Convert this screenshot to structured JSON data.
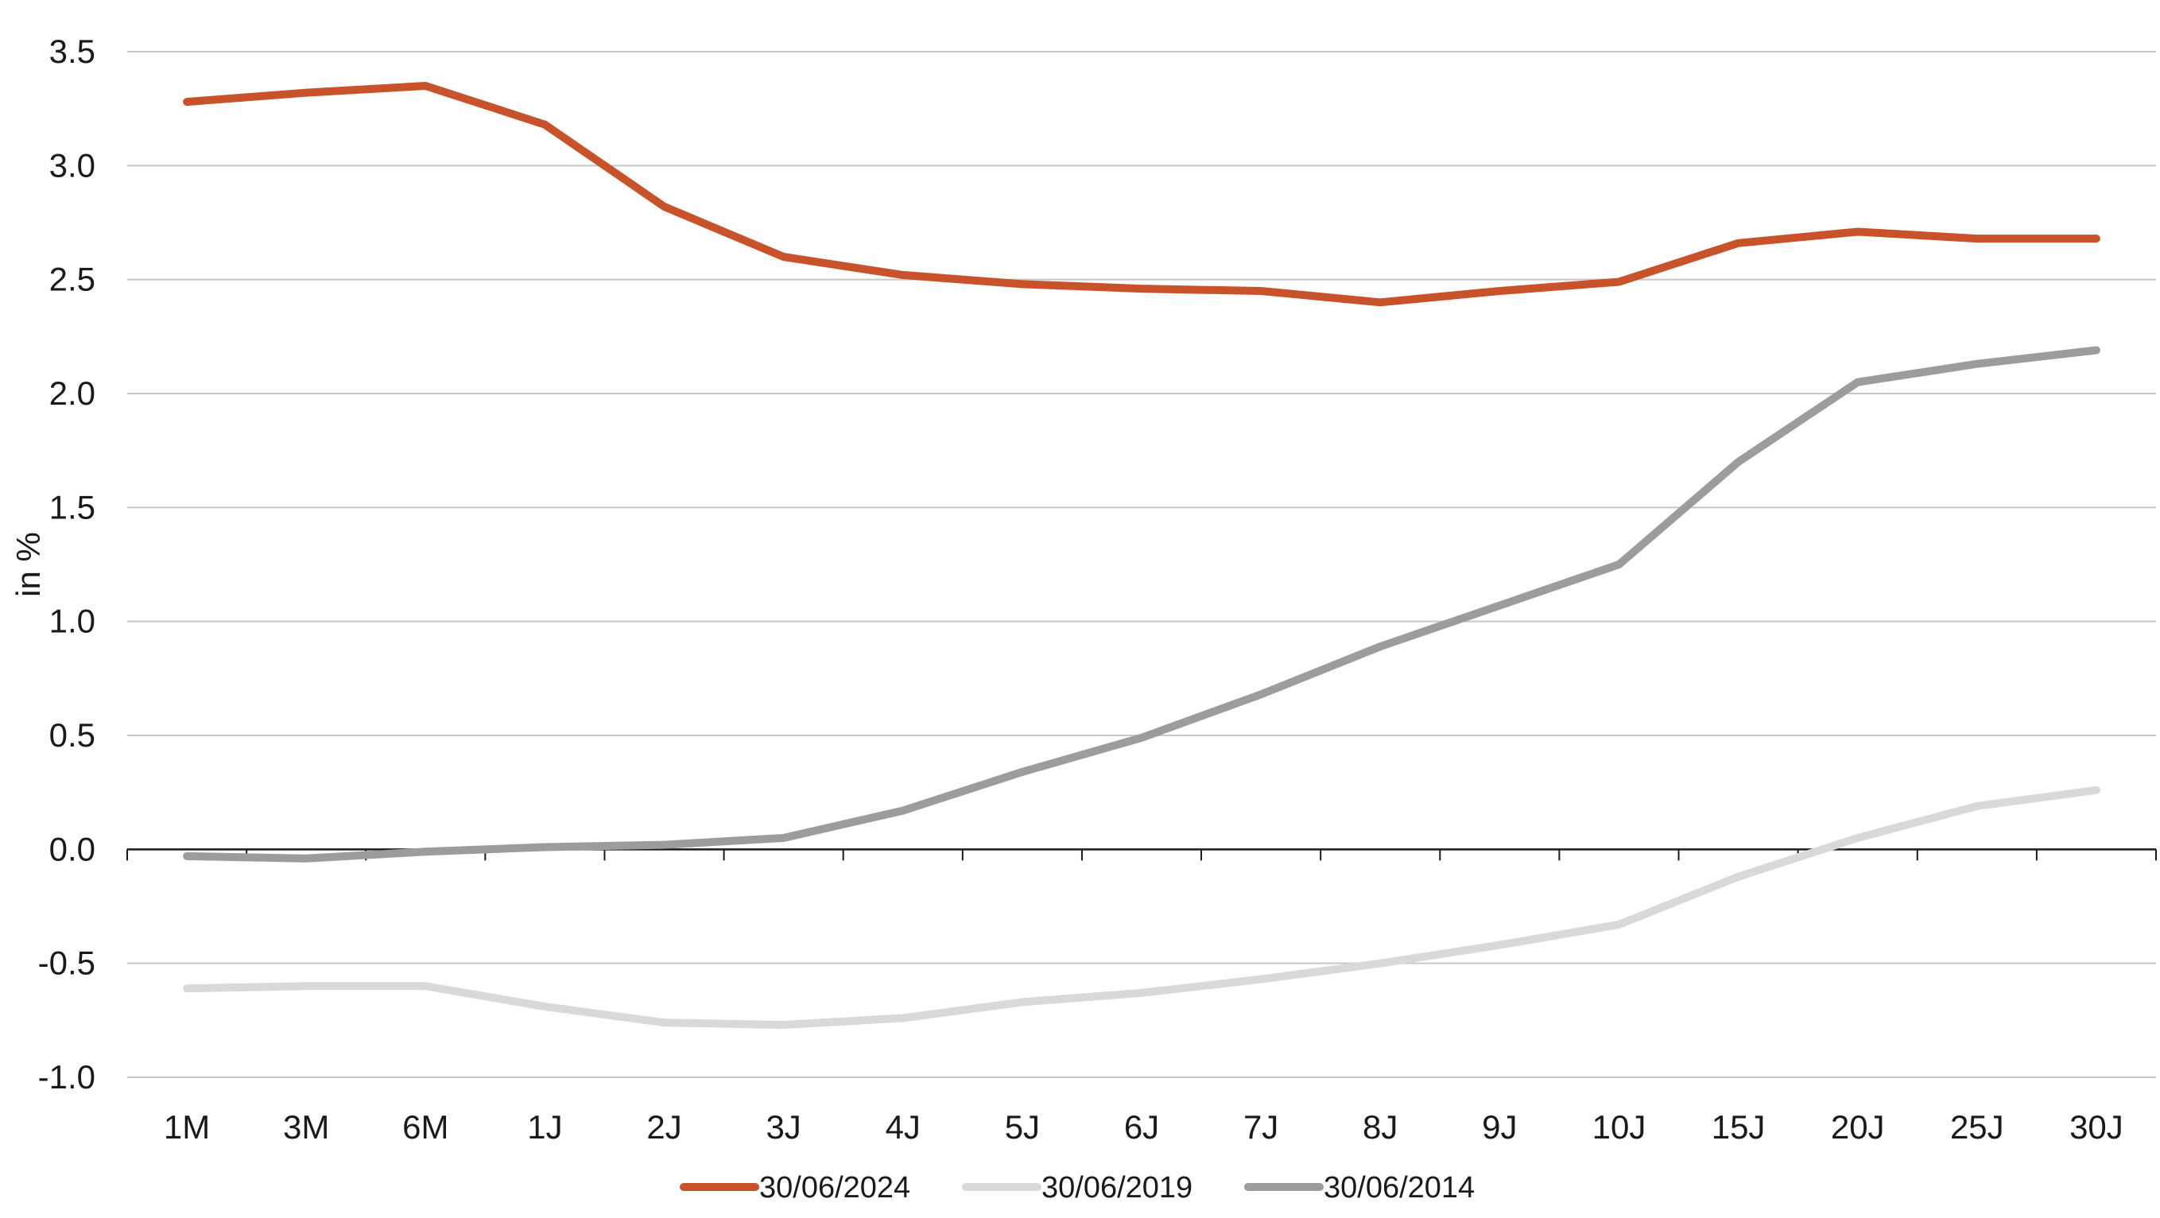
{
  "chart_data": {
    "type": "line",
    "title": "",
    "xlabel": "",
    "ylabel": "in %",
    "ylim": [
      -1.0,
      3.5
    ],
    "yticks": [
      "3.5",
      "3.0",
      "2.5",
      "2.0",
      "1.5",
      "1.0",
      "0.5",
      "0.0",
      "-0.5",
      "-1.0"
    ],
    "grid": true,
    "legend_position": "bottom",
    "categories": [
      "1M",
      "3M",
      "6M",
      "1J",
      "2J",
      "3J",
      "4J",
      "5J",
      "6J",
      "7J",
      "8J",
      "9J",
      "10J",
      "15J",
      "20J",
      "25J",
      "30J"
    ],
    "series": [
      {
        "name": "30/06/2024",
        "color": "#c8522a",
        "values": [
          3.28,
          3.32,
          3.35,
          3.18,
          2.82,
          2.6,
          2.52,
          2.48,
          2.46,
          2.45,
          2.4,
          2.45,
          2.49,
          2.66,
          2.71,
          2.68,
          2.68
        ]
      },
      {
        "name": "30/06/2019",
        "color": "#d9d9d9",
        "values": [
          -0.61,
          -0.6,
          -0.6,
          -0.69,
          -0.76,
          -0.77,
          -0.74,
          -0.67,
          -0.63,
          -0.57,
          -0.5,
          -0.42,
          -0.33,
          -0.12,
          0.05,
          0.19,
          0.26
        ]
      },
      {
        "name": "30/06/2014",
        "color": "#9e9c9a",
        "values": [
          -0.03,
          -0.04,
          -0.01,
          0.01,
          0.02,
          0.05,
          0.17,
          0.34,
          0.49,
          0.68,
          0.89,
          1.07,
          1.25,
          1.7,
          2.05,
          2.13,
          2.19
        ]
      }
    ]
  }
}
